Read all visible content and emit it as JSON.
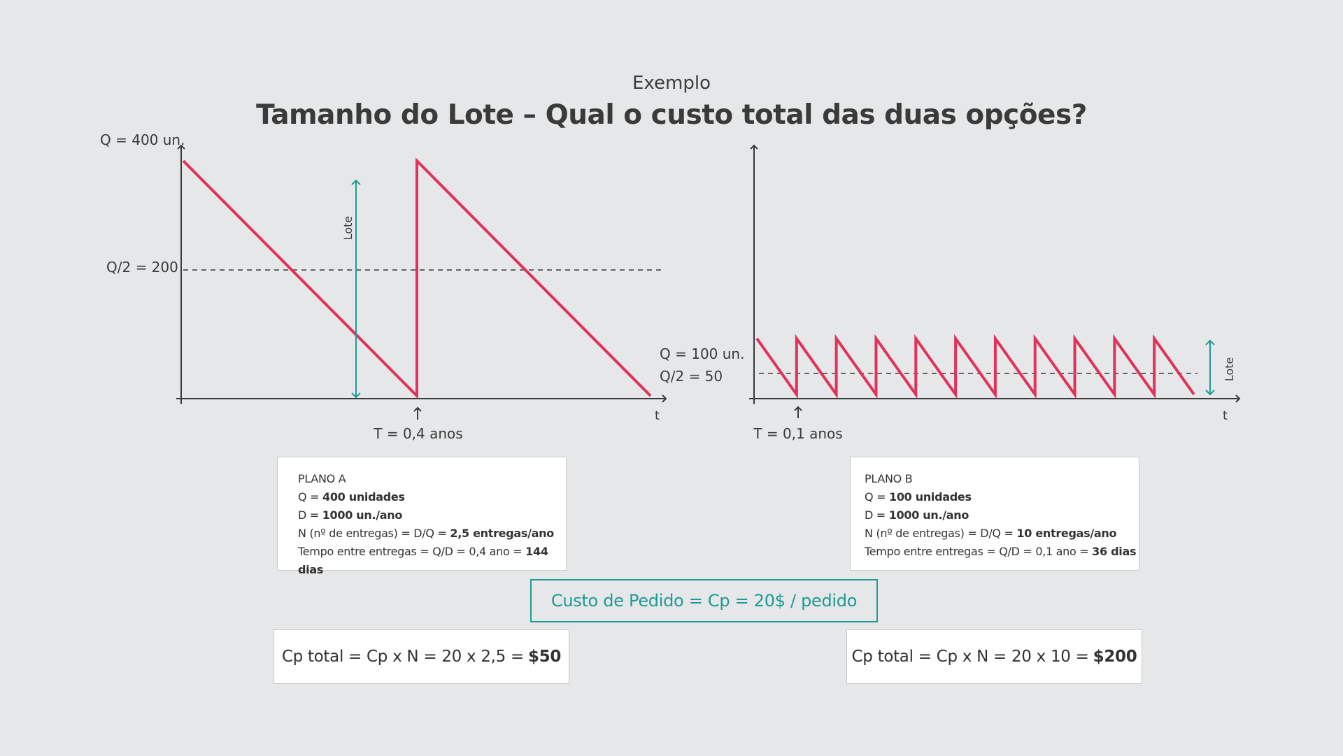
{
  "header": {
    "subtitle": "Exemplo",
    "title": "Tamanho do Lote – Qual o custo total das duas opções?"
  },
  "chart_a": {
    "q_label": "Q = 400 un.",
    "half_label": "Q/2 = 200",
    "lot_label": "Lote",
    "period_label": "T = 0,4 anos",
    "axis_label": "t",
    "Q": 400,
    "T": 0.4,
    "cycles": 2
  },
  "chart_b": {
    "q_label": "Q = 100 un.",
    "half_label": "Q/2 = 50",
    "lot_label": "Lote",
    "period_label": "T = 0,1 anos",
    "axis_label": "t",
    "Q": 100,
    "T": 0.1,
    "cycles": 11
  },
  "plan_a": {
    "title": "PLANO A",
    "q_prefix": "Q = ",
    "q_value": "400 unidades",
    "d_prefix": "D = ",
    "d_value": "1000 un./ano",
    "n_prefix": "N (nº de entregas) = D/Q = ",
    "n_value": "2,5 entregas/ano",
    "t_prefix": "Tempo entre entregas = Q/D = 0,4 ano = ",
    "t_value": "144 dias"
  },
  "plan_b": {
    "title": "PLANO B",
    "q_prefix": "Q = ",
    "q_value": "100 unidades",
    "d_prefix": "D = ",
    "d_value": "1000 un./ano",
    "n_prefix": "N (nº de entregas) = D/Q = ",
    "n_value": "10 entregas/ano",
    "t_prefix": "Tempo entre entregas = Q/D = 0,1 ano = ",
    "t_value": "36 dias"
  },
  "order_cost": "Custo de Pedido = Cp = 20$ / pedido",
  "total_a": {
    "prefix": "Cp total = Cp x N = 20 x 2,5 =",
    "value": "$50"
  },
  "total_b": {
    "prefix": "Cp total = Cp x N = 20 x 10 =",
    "value": "$200"
  },
  "colors": {
    "inventory_line": "#e0325a",
    "lot_arrow": "#1f9a94",
    "axis": "#3a3a3a"
  }
}
